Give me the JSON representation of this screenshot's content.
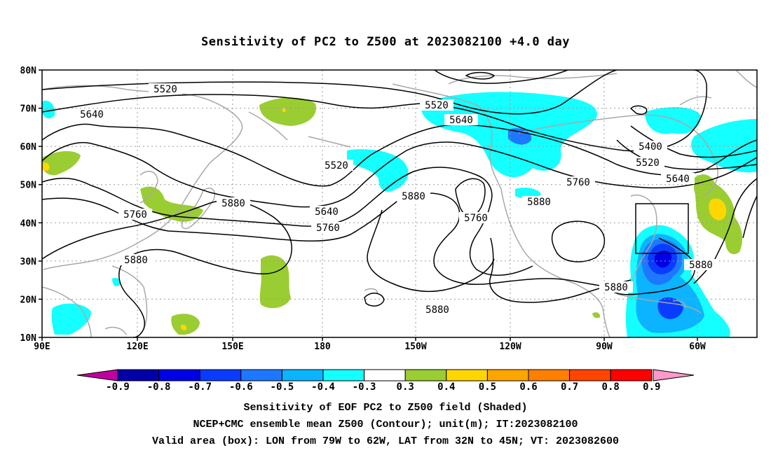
{
  "title": "Sensitivity of PC2 to Z500 at 2023082100 +4.0 day",
  "map": {
    "latitude_labels": [
      "80N",
      "70N",
      "60N",
      "50N",
      "40N",
      "30N",
      "20N",
      "10N"
    ],
    "longitude_labels": [
      "90E",
      "120E",
      "150E",
      "180",
      "150W",
      "120W",
      "90W",
      "60W"
    ],
    "contour_labels": [
      {
        "text": "5520",
        "kind": "contour-label"
      },
      {
        "text": "5640",
        "kind": "contour-label"
      },
      {
        "text": "5520",
        "kind": "contour-label"
      },
      {
        "text": "5640",
        "kind": "contour-label"
      },
      {
        "text": "5520",
        "kind": "contour-label"
      },
      {
        "text": "5400",
        "kind": "contour-label"
      },
      {
        "text": "5520",
        "kind": "contour-label"
      },
      {
        "text": "5640",
        "kind": "contour-label"
      },
      {
        "text": "5760",
        "kind": "contour-label"
      },
      {
        "text": "5880",
        "kind": "contour-label"
      },
      {
        "text": "5760",
        "kind": "contour-label"
      },
      {
        "text": "5880",
        "kind": "contour-label"
      },
      {
        "text": "5640",
        "kind": "contour-label"
      },
      {
        "text": "5760",
        "kind": "contour-label"
      },
      {
        "text": "5880",
        "kind": "contour-label"
      },
      {
        "text": "5760",
        "kind": "contour-label"
      },
      {
        "text": "5880",
        "kind": "contour-label"
      },
      {
        "text": "5880",
        "kind": "contour-label"
      },
      {
        "text": "5880",
        "kind": "contour-label"
      },
      {
        "text": "5880",
        "kind": "contour-label"
      }
    ]
  },
  "colorbar": {
    "labels": [
      "-0.9",
      "-0.8",
      "-0.7",
      "-0.6",
      "-0.5",
      "-0.4",
      "-0.3",
      "0.3",
      "0.4",
      "0.5",
      "0.6",
      "0.7",
      "0.8",
      "0.9"
    ],
    "colors": [
      "#0000a8",
      "#0000e6",
      "#0a3cff",
      "#1e78ff",
      "#0cb4ff",
      "#14ffff",
      "#ffffff",
      "#9acd32",
      "#ffd700",
      "#ffa500",
      "#ff7f00",
      "#ff4500",
      "#ff0000"
    ],
    "low_arrow_color": "#c000a0",
    "high_arrow_color": "#ff99cc"
  },
  "captions": {
    "line1": "Sensitivity of EOF PC2 to Z500 field (Shaded)",
    "line2": "NCEP+CMC ensemble mean Z500 (Contour); unit(m); IT:2023082100",
    "line3": "Valid area (box): LON from 79W to 62W, LAT from 32N to 45N; VT: 2023082600"
  }
}
